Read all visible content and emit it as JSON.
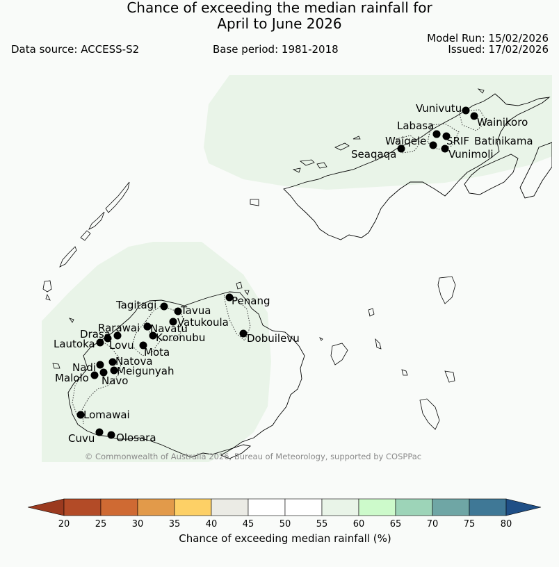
{
  "title": {
    "line1": "Chance of exceeding the median rainfall for",
    "line2": "April to June 2026"
  },
  "header": {
    "data_source": "Data source: ACCESS-S2",
    "base_period": "Base period: 1981-2018",
    "model_run": "Model Run: 15/02/2026",
    "issued": "Issued: 17/02/2026"
  },
  "copyright": "© Commonwealth of Australia 2026, Bureau of Meteorology, supported by COSPPac",
  "colorbar": {
    "label": "Chance of exceeding median rainfall (%)",
    "ticks": [
      "20",
      "25",
      "30",
      "35",
      "40",
      "45",
      "50",
      "55",
      "60",
      "65",
      "70",
      "75",
      "80"
    ],
    "under_color": "#9b3a1f",
    "over_color": "#1f4f86",
    "colors": [
      "#b34b27",
      "#cf6a33",
      "#e29a4a",
      "#fdd066",
      "#ebebe5",
      "#ffffff",
      "#ffffff",
      "#e9f4e8",
      "#cdfacb",
      "#9dd4b8",
      "#6fa6a5",
      "#3f7896"
    ]
  },
  "stations": [
    {
      "name": "Vunivutu"
    },
    {
      "name": "Wainikoro"
    },
    {
      "name": "Labasa"
    },
    {
      "name": "SRIF"
    },
    {
      "name": "Batinikama"
    },
    {
      "name": "Waiqele"
    },
    {
      "name": "Seaqaqa"
    },
    {
      "name": "Vunimoli"
    },
    {
      "name": "Tagitagi"
    },
    {
      "name": "Tavua"
    },
    {
      "name": "Penang"
    },
    {
      "name": "Vatukoula"
    },
    {
      "name": "Rarawai"
    },
    {
      "name": "Navatu"
    },
    {
      "name": "Drasa"
    },
    {
      "name": "Koronubu"
    },
    {
      "name": "Lautoka"
    },
    {
      "name": "Lovu"
    },
    {
      "name": "Dobuilevu"
    },
    {
      "name": "Mota"
    },
    {
      "name": "Natova"
    },
    {
      "name": "Nadi"
    },
    {
      "name": "Meigunyah"
    },
    {
      "name": "Malolo"
    },
    {
      "name": "Navo"
    },
    {
      "name": "Lomawai"
    },
    {
      "name": "Cuvu"
    },
    {
      "name": "Olosara"
    }
  ]
}
